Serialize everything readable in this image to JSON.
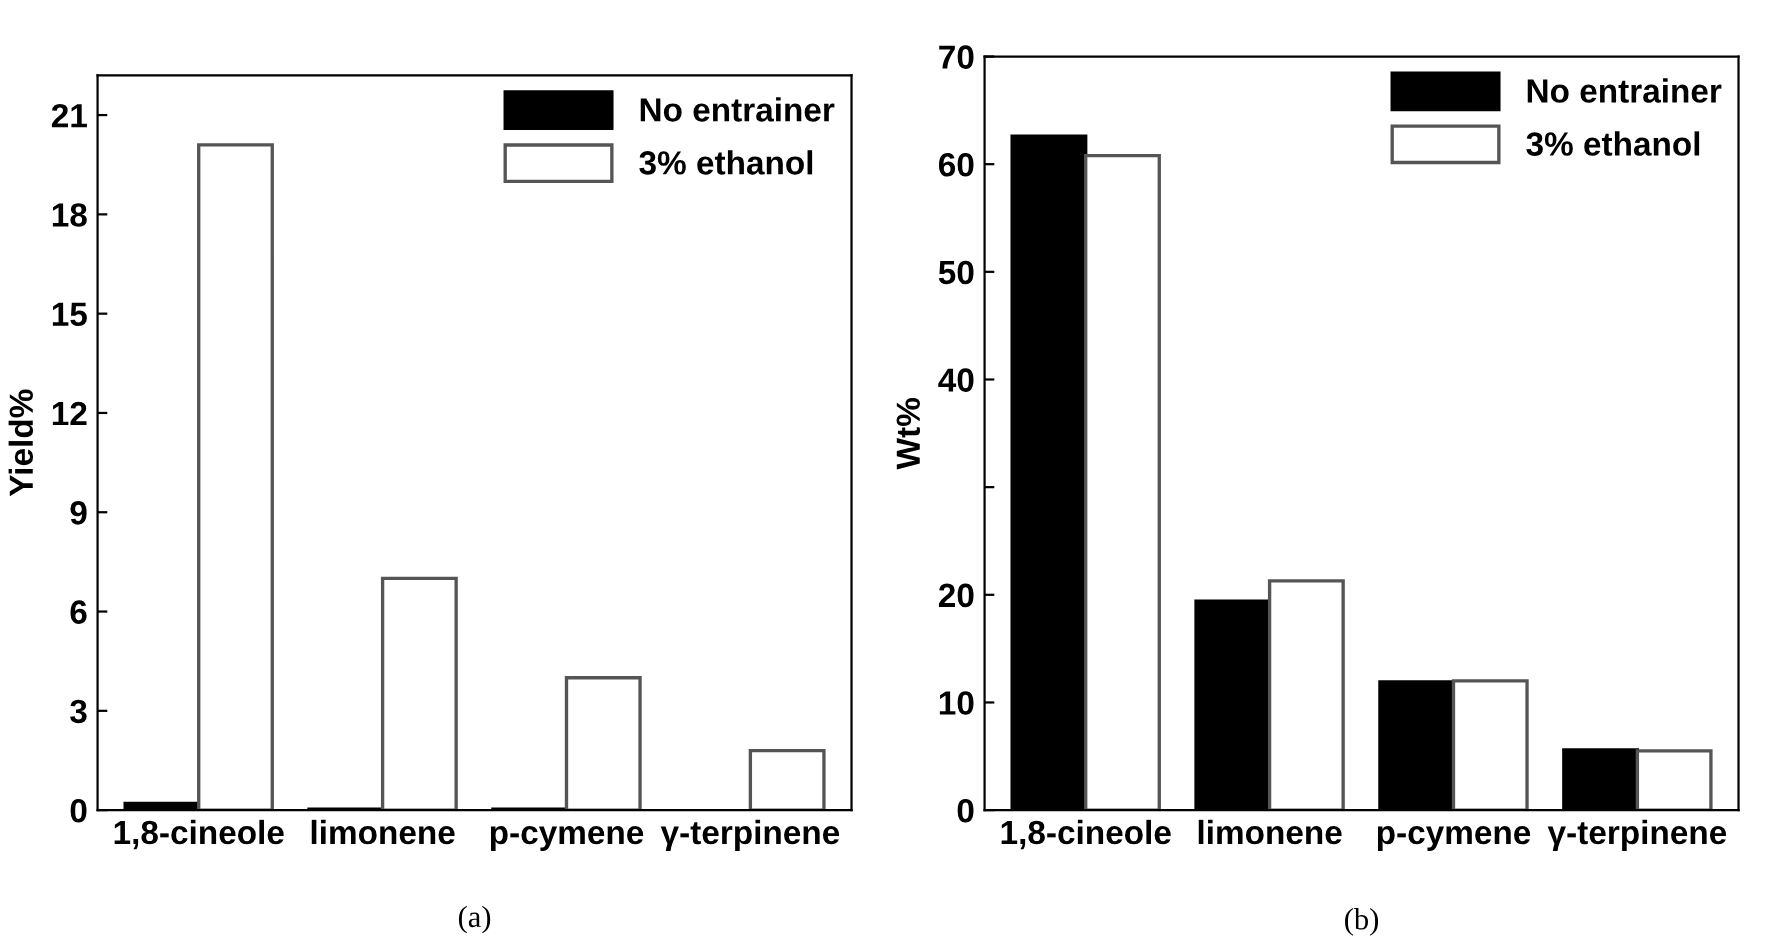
{
  "chart_data": [
    {
      "type": "bar",
      "categories": [
        "1,8-cineole",
        "limonene",
        "p-cymene",
        "γ-terpinene"
      ],
      "ylabel": "Yield%",
      "series": [
        {
          "name": "No entrainer",
          "color": "#000000",
          "values": [
            0.2,
            0.03,
            0.03,
            null
          ]
        },
        {
          "name": "3% ethanol",
          "color": "#ffffff",
          "values": [
            20.1,
            7.0,
            4.0,
            1.8
          ]
        }
      ],
      "ylim": [
        0,
        22.2
      ],
      "yticks": [
        0,
        3,
        6,
        9,
        12,
        15,
        18,
        21
      ],
      "legend": "top right",
      "grid": false,
      "annotations": [
        "(a)"
      ]
    },
    {
      "type": "bar",
      "categories": [
        "1,8-cineole",
        "limonene",
        "p-cymene",
        "γ-terpinene"
      ],
      "ylabel": "Wt%",
      "series": [
        {
          "name": "No entrainer",
          "color": "#000000",
          "values": [
            62.6,
            19.4,
            11.9,
            5.6
          ]
        },
        {
          "name": "3% ethanol",
          "color": "#ffffff",
          "values": [
            60.8,
            21.3,
            12.0,
            5.5
          ]
        }
      ],
      "ylim": [
        0,
        70
      ],
      "yticks": [
        0,
        10,
        20,
        {
          "value": 30,
          "label": null
        },
        40,
        50,
        60,
        70
      ],
      "legend": "top right",
      "grid": false,
      "annotations": [
        "(b)"
      ]
    }
  ]
}
